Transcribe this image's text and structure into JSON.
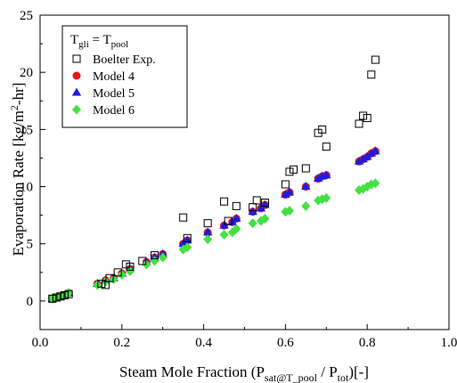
{
  "chart_data": {
    "type": "scatter",
    "title": "",
    "xlabel": {
      "base": "Steam Mole Fraction (P",
      "sub1": "sat@T_pool",
      "mid": " / P",
      "sub2": "tot",
      "end": ")[-]"
    },
    "ylabel": {
      "base": "Evaporation Rate [kg/m",
      "sup": "2",
      "end": "-hr]"
    },
    "xlim": [
      0.0,
      1.0
    ],
    "ylim": [
      -2.5,
      25
    ],
    "xticks": [
      0.0,
      0.2,
      0.4,
      0.6,
      0.8,
      1.0
    ],
    "xtick_labels": [
      "0.0",
      "0.2",
      "0.4",
      "0.6",
      "0.8",
      "1.0"
    ],
    "yticks": [
      0,
      5,
      10,
      15,
      20,
      25
    ],
    "ytick_labels": [
      "0",
      "5",
      "10",
      "15",
      "20",
      "25"
    ],
    "grid": false,
    "legend": {
      "placement": "top-left",
      "title": {
        "base": "T",
        "sub1": "gli",
        "mid": " = T",
        "sub2": "pool"
      }
    },
    "series": [
      {
        "name": "Boelter Exp.",
        "marker": "square-open",
        "color": "#000000",
        "x": [
          0.03,
          0.04,
          0.05,
          0.06,
          0.07,
          0.15,
          0.16,
          0.17,
          0.19,
          0.21,
          0.22,
          0.25,
          0.28,
          0.35,
          0.36,
          0.41,
          0.45,
          0.46,
          0.48,
          0.52,
          0.53,
          0.55,
          0.6,
          0.61,
          0.62,
          0.65,
          0.68,
          0.69,
          0.7,
          0.78,
          0.79,
          0.8,
          0.81,
          0.82
        ],
        "y": [
          0.2,
          0.3,
          0.4,
          0.5,
          0.6,
          1.5,
          1.4,
          2.0,
          2.5,
          3.2,
          3.0,
          3.5,
          4.0,
          7.3,
          5.5,
          6.8,
          8.7,
          7.0,
          8.3,
          8.2,
          8.8,
          8.6,
          10.2,
          11.3,
          11.5,
          11.6,
          14.7,
          15.0,
          13.5,
          15.5,
          16.2,
          16.0,
          19.8,
          21.1
        ]
      },
      {
        "name": "Model 4",
        "marker": "circle",
        "color": "#e8141c",
        "x": [
          0.03,
          0.04,
          0.05,
          0.06,
          0.07,
          0.14,
          0.16,
          0.18,
          0.2,
          0.22,
          0.26,
          0.28,
          0.3,
          0.35,
          0.36,
          0.41,
          0.45,
          0.47,
          0.48,
          0.52,
          0.54,
          0.55,
          0.6,
          0.61,
          0.65,
          0.68,
          0.69,
          0.7,
          0.78,
          0.79,
          0.8,
          0.81,
          0.82
        ],
        "y": [
          0.2,
          0.3,
          0.4,
          0.5,
          0.7,
          1.5,
          1.8,
          2.0,
          2.4,
          2.8,
          3.4,
          3.8,
          4.1,
          5.0,
          5.3,
          6.0,
          6.6,
          6.9,
          7.2,
          7.8,
          8.1,
          8.4,
          9.3,
          9.5,
          10.0,
          10.7,
          10.9,
          11.0,
          12.2,
          12.4,
          12.6,
          12.9,
          13.1
        ]
      },
      {
        "name": "Model 5",
        "marker": "triangle",
        "color": "#1c1ce0",
        "x": [
          0.03,
          0.04,
          0.05,
          0.06,
          0.07,
          0.14,
          0.16,
          0.18,
          0.2,
          0.22,
          0.26,
          0.28,
          0.3,
          0.35,
          0.36,
          0.41,
          0.45,
          0.47,
          0.48,
          0.52,
          0.54,
          0.55,
          0.6,
          0.61,
          0.65,
          0.68,
          0.69,
          0.7,
          0.78,
          0.79,
          0.8,
          0.81,
          0.82
        ],
        "y": [
          0.2,
          0.3,
          0.4,
          0.5,
          0.7,
          1.5,
          1.8,
          2.0,
          2.4,
          2.8,
          3.4,
          3.8,
          4.1,
          5.0,
          5.3,
          6.0,
          6.6,
          6.9,
          7.2,
          7.8,
          8.1,
          8.4,
          9.3,
          9.5,
          10.0,
          10.7,
          10.9,
          11.0,
          12.2,
          12.4,
          12.6,
          12.9,
          13.1
        ]
      },
      {
        "name": "Model 6",
        "marker": "diamond",
        "color": "#44e044",
        "x": [
          0.03,
          0.04,
          0.05,
          0.06,
          0.07,
          0.14,
          0.16,
          0.18,
          0.2,
          0.22,
          0.26,
          0.28,
          0.3,
          0.35,
          0.36,
          0.41,
          0.45,
          0.47,
          0.48,
          0.52,
          0.54,
          0.55,
          0.6,
          0.61,
          0.65,
          0.68,
          0.69,
          0.7,
          0.78,
          0.79,
          0.8,
          0.81,
          0.82
        ],
        "y": [
          0.2,
          0.3,
          0.4,
          0.5,
          0.7,
          1.4,
          1.7,
          1.9,
          2.3,
          2.6,
          3.2,
          3.5,
          3.8,
          4.5,
          4.7,
          5.4,
          5.8,
          6.0,
          6.3,
          6.8,
          7.0,
          7.2,
          7.8,
          7.9,
          8.3,
          8.8,
          8.9,
          9.0,
          9.7,
          9.8,
          10.0,
          10.2,
          10.3
        ]
      }
    ]
  }
}
